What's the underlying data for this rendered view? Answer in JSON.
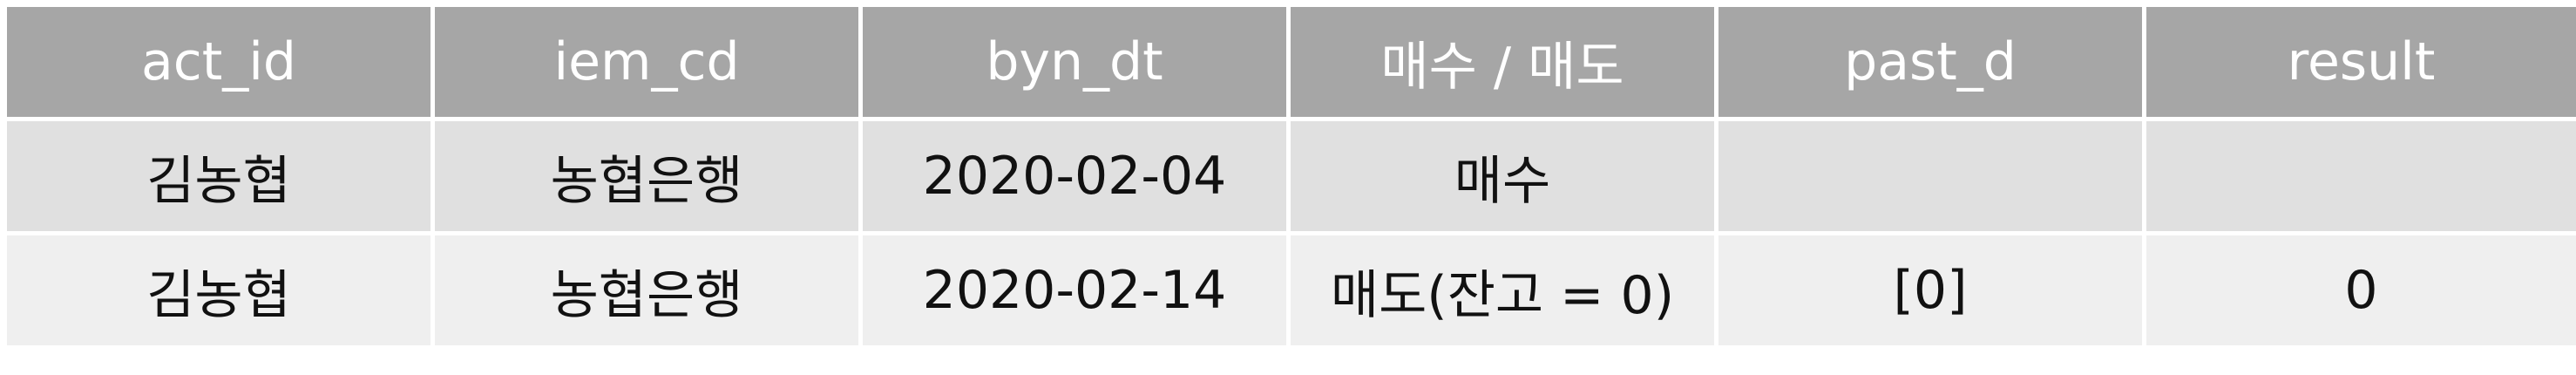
{
  "table": {
    "headers": [
      "act_id",
      "iem_cd",
      "byn_dt",
      "매수 / 매도",
      "past_d",
      "result"
    ],
    "rows": [
      [
        "김농협",
        "농협은행",
        "2020-02-04",
        "매수",
        "",
        ""
      ],
      [
        "김농협",
        "농협은행",
        "2020-02-14",
        "매도(잔고 = 0)",
        "[0]",
        "0"
      ]
    ]
  },
  "colors": {
    "header_bg": "#a6a6a6",
    "header_text": "#ffffff",
    "row_odd_bg": "#e0e0e0",
    "row_even_bg": "#efefef",
    "cell_border": "#ffffff"
  }
}
